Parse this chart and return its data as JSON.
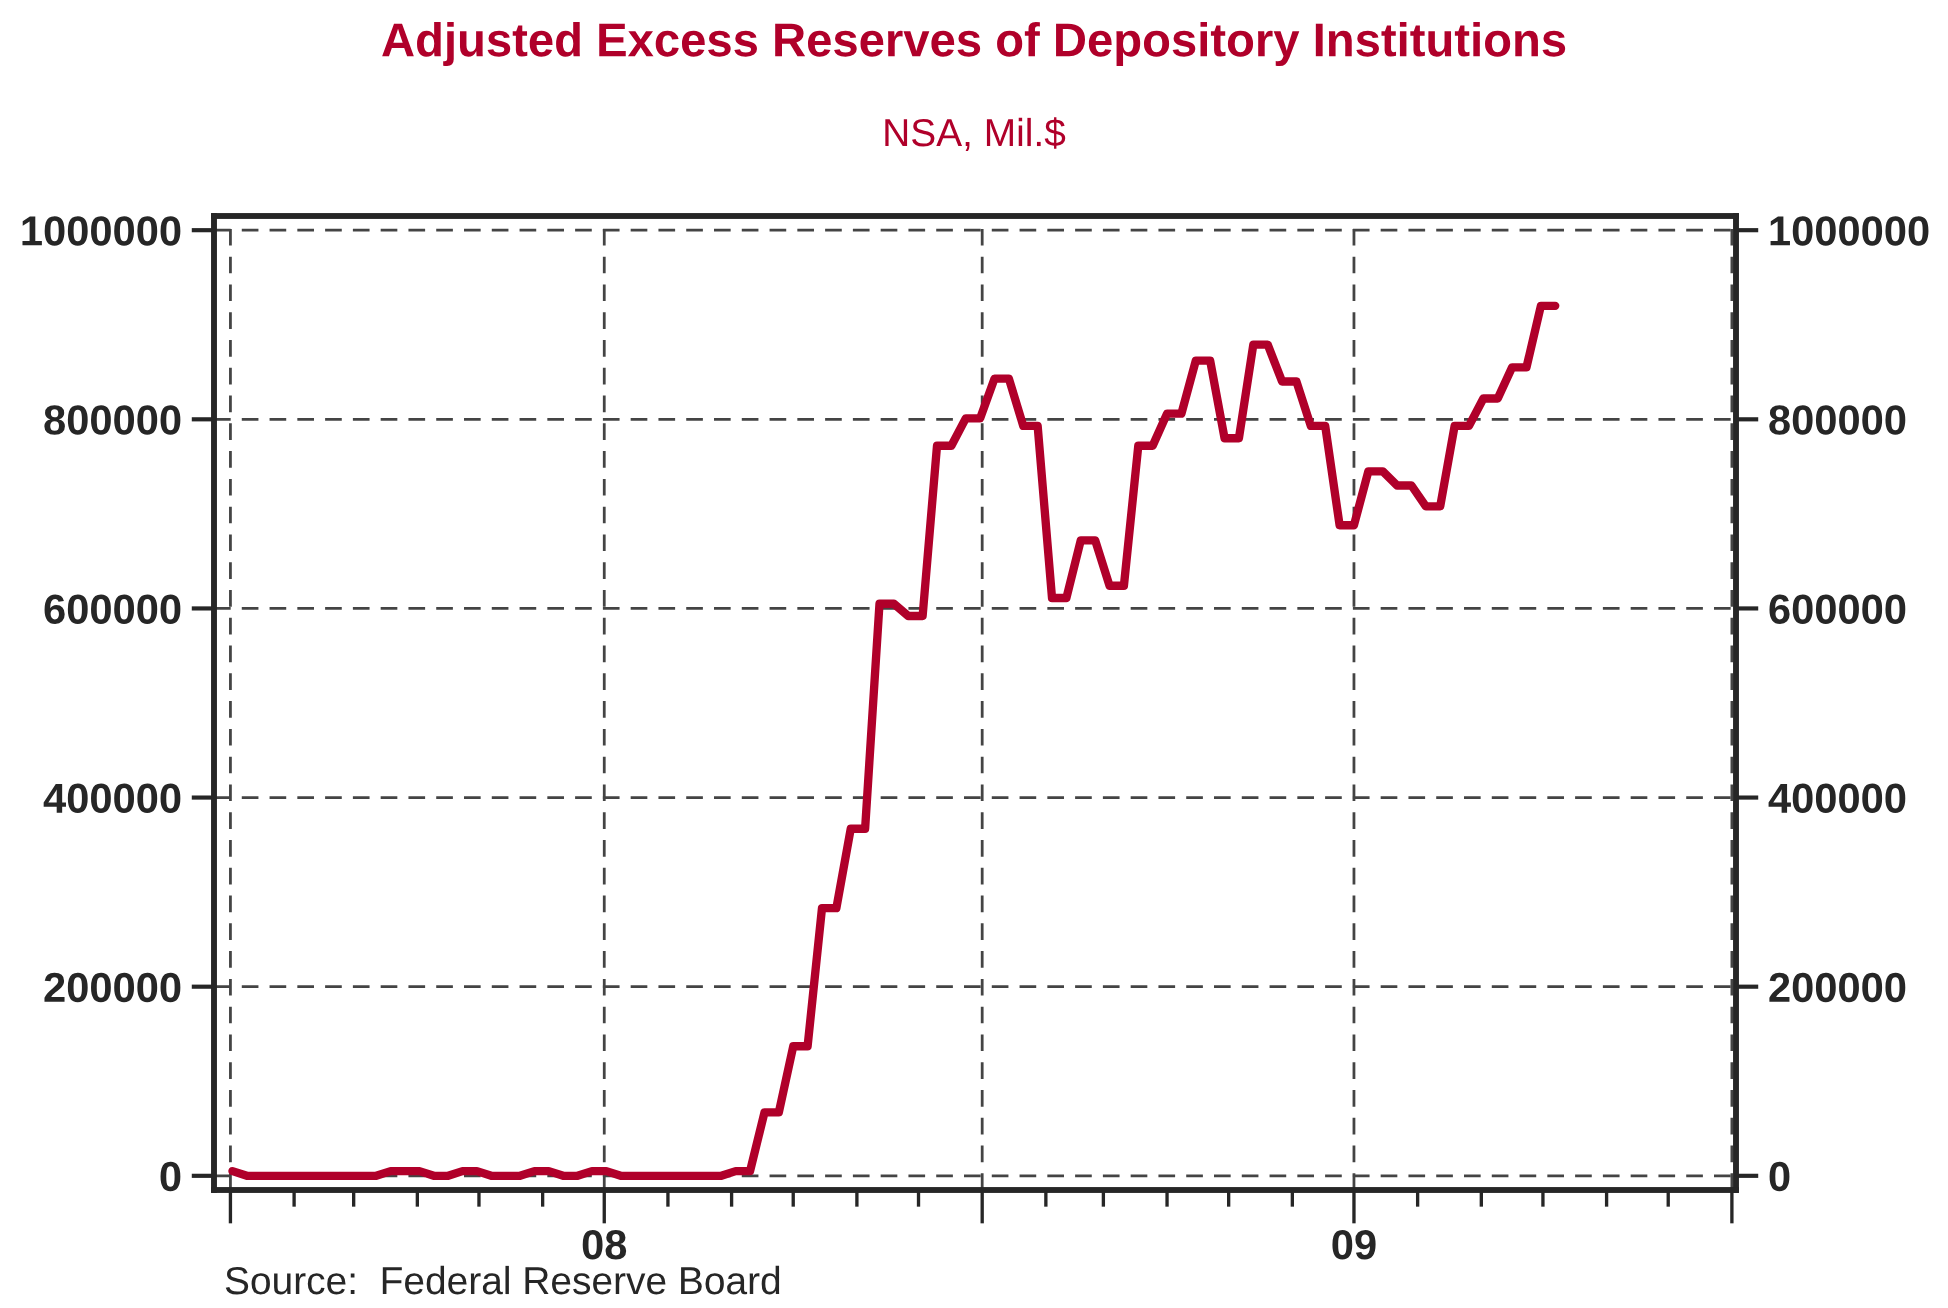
{
  "chart_data": {
    "type": "line",
    "title": "Adjusted Excess Reserves of Depository Institutions",
    "subtitle": "NSA, Mil.$",
    "x": [
      "2008-01-02",
      "2008-01-09",
      "2008-01-16",
      "2008-01-23",
      "2008-01-30",
      "2008-02-06",
      "2008-02-13",
      "2008-02-20",
      "2008-02-27",
      "2008-03-05",
      "2008-03-12",
      "2008-03-19",
      "2008-03-26",
      "2008-04-02",
      "2008-04-09",
      "2008-04-16",
      "2008-04-23",
      "2008-04-30",
      "2008-05-07",
      "2008-05-14",
      "2008-05-21",
      "2008-05-28",
      "2008-06-04",
      "2008-06-11",
      "2008-06-18",
      "2008-06-25",
      "2008-07-02",
      "2008-07-09",
      "2008-07-16",
      "2008-07-23",
      "2008-07-30",
      "2008-08-06",
      "2008-08-13",
      "2008-08-20",
      "2008-08-27",
      "2008-09-03",
      "2008-09-10",
      "2008-09-17",
      "2008-09-24",
      "2008-10-01",
      "2008-10-08",
      "2008-10-15",
      "2008-10-22",
      "2008-10-29",
      "2008-11-05",
      "2008-11-12",
      "2008-11-19",
      "2008-11-26",
      "2008-12-03",
      "2008-12-10",
      "2008-12-17",
      "2008-12-24",
      "2008-12-31",
      "2009-01-07",
      "2009-01-14",
      "2009-01-21",
      "2009-01-28",
      "2009-02-04",
      "2009-02-11",
      "2009-02-18",
      "2009-02-25",
      "2009-03-04",
      "2009-03-11",
      "2009-03-18",
      "2009-03-25",
      "2009-04-01",
      "2009-04-08",
      "2009-04-15",
      "2009-04-22",
      "2009-04-29",
      "2009-05-06",
      "2009-05-13",
      "2009-05-20",
      "2009-05-27",
      "2009-06-03",
      "2009-06-10",
      "2009-06-17",
      "2009-06-24",
      "2009-07-01",
      "2009-07-08",
      "2009-07-15",
      "2009-07-22",
      "2009-07-29",
      "2009-08-05",
      "2009-08-12",
      "2009-08-19",
      "2009-08-26",
      "2009-09-02",
      "2009-09-09",
      "2009-09-16",
      "2009-09-23",
      "2009-09-30",
      "2009-10-07"
    ],
    "series": [
      {
        "color": "#b0002a",
        "values": [
          5000,
          0,
          0,
          0,
          0,
          0,
          0,
          0,
          0,
          0,
          0,
          5000,
          5000,
          5000,
          0,
          0,
          5000,
          5000,
          0,
          0,
          0,
          5000,
          5000,
          0,
          0,
          5000,
          5000,
          0,
          0,
          0,
          0,
          0,
          0,
          0,
          0,
          5000,
          5000,
          67000,
          67000,
          137000,
          137000,
          283000,
          283000,
          367000,
          367000,
          605000,
          605000,
          592000,
          592000,
          772000,
          772000,
          801000,
          801000,
          843000,
          843000,
          793000,
          793000,
          611000,
          611000,
          672000,
          672000,
          624000,
          624000,
          772000,
          772000,
          806000,
          806000,
          862000,
          862000,
          780000,
          780000,
          879000,
          879000,
          840000,
          840000,
          793000,
          793000,
          688000,
          688000,
          745000,
          745000,
          730000,
          730000,
          708000,
          708000,
          793000,
          793000,
          822000,
          822000,
          855000,
          855000,
          920000,
          920000
        ]
      }
    ],
    "xlim": [
      "2007-12-24",
      "2010-01-03"
    ],
    "xticks": [
      {
        "value": "2008-01-01",
        "label": null
      },
      {
        "value": "2008-07-01",
        "label": "08"
      },
      {
        "value": "2009-01-01",
        "label": null
      },
      {
        "value": "2009-07-01",
        "label": "09"
      },
      {
        "value": "2010-01-01",
        "label": null
      }
    ],
    "ylim": [
      -15000,
      1015000
    ],
    "yticks": [
      0,
      200000,
      400000,
      600000,
      800000,
      1000000
    ],
    "y2lim": [
      -15000,
      1015000
    ],
    "y2ticks": [
      0,
      200000,
      400000,
      600000,
      800000,
      1000000
    ],
    "grid": true,
    "line_style": "solid",
    "marker": "none",
    "legend": false,
    "annotations": [
      "Source:  Federal Reserve Board"
    ]
  }
}
